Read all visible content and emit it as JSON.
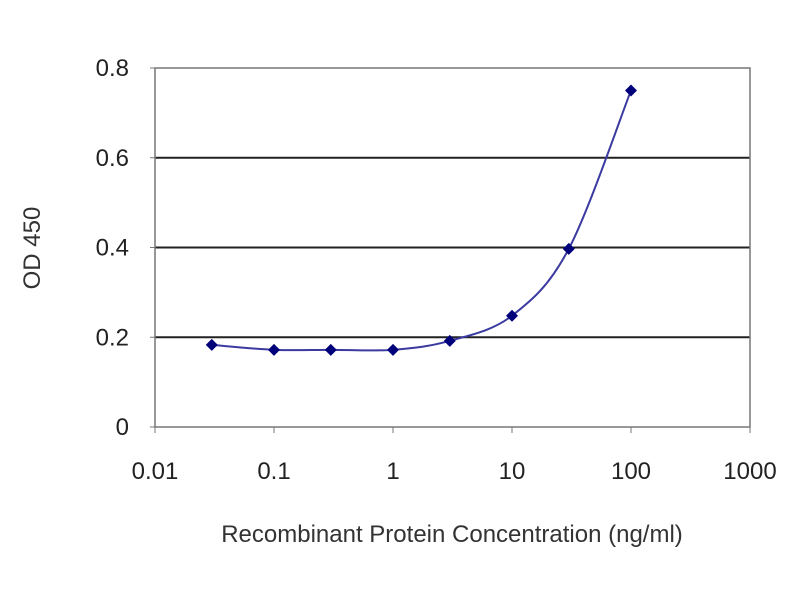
{
  "chart_data": {
    "type": "line",
    "title": "",
    "xlabel": "Recombinant Protein Concentration (ng/ml)",
    "ylabel": "OD 450",
    "x_scale": "log",
    "xlim": [
      0.01,
      1000
    ],
    "ylim": [
      0,
      0.8
    ],
    "x_tick_labels": [
      "0.01",
      "0.1",
      "1",
      "10",
      "100",
      "1000"
    ],
    "y_tick_labels": [
      "0",
      "0.2",
      "0.4",
      "0.6",
      "0.8"
    ],
    "grid": "horizontal",
    "legend": "none",
    "marker": "diamond",
    "line": "smoothed",
    "series": [
      {
        "x": [
          0.03,
          0.1,
          0.3,
          1,
          3,
          10,
          30,
          100
        ],
        "values": [
          0.183,
          0.172,
          0.172,
          0.172,
          0.192,
          0.248,
          0.397,
          0.75
        ],
        "color": "#00007a"
      }
    ]
  }
}
